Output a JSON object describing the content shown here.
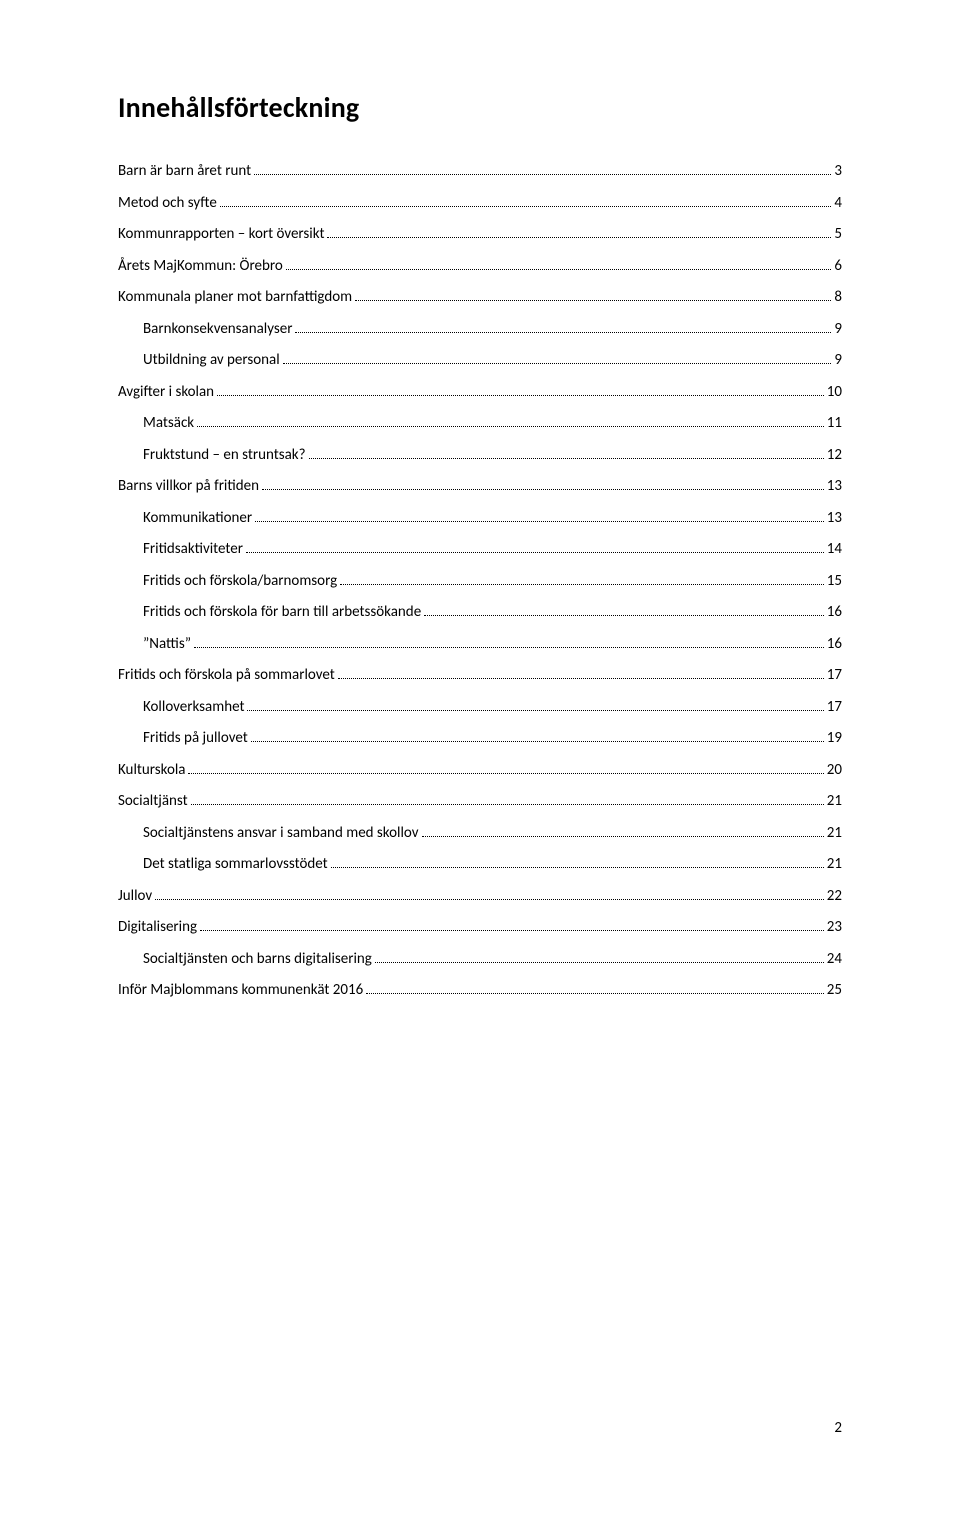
{
  "title": "Innehållsförteckning",
  "footerPage": "2",
  "toc": [
    {
      "level": 0,
      "label": "Barn är barn året runt",
      "page": "3"
    },
    {
      "level": 0,
      "label": "Metod och syfte",
      "page": "4"
    },
    {
      "level": 0,
      "label": "Kommunrapporten – kort översikt",
      "page": "5"
    },
    {
      "level": 0,
      "label": "Årets MajKommun: Örebro",
      "page": "6"
    },
    {
      "level": 0,
      "label": "Kommunala planer mot barnfattigdom",
      "page": "8"
    },
    {
      "level": 1,
      "label": "Barnkonsekvensanalyser",
      "page": "9"
    },
    {
      "level": 1,
      "label": "Utbildning av personal",
      "page": "9"
    },
    {
      "level": 0,
      "label": "Avgifter i skolan",
      "page": "10"
    },
    {
      "level": 1,
      "label": "Matsäck",
      "page": "11"
    },
    {
      "level": 1,
      "label": "Fruktstund – en struntsak?",
      "page": "12"
    },
    {
      "level": 0,
      "label": "Barns villkor på fritiden",
      "page": "13"
    },
    {
      "level": 1,
      "label": "Kommunikationer",
      "page": "13"
    },
    {
      "level": 1,
      "label": "Fritidsaktiviteter",
      "page": "14"
    },
    {
      "level": 1,
      "label": "Fritids och förskola/barnomsorg",
      "page": "15"
    },
    {
      "level": 1,
      "label": "Fritids och förskola för barn till arbetssökande",
      "page": "16"
    },
    {
      "level": 1,
      "label": "”Nattis”",
      "page": "16"
    },
    {
      "level": 0,
      "label": "Fritids och förskola på sommarlovet",
      "page": "17"
    },
    {
      "level": 1,
      "label": "Kolloverksamhet",
      "page": "17"
    },
    {
      "level": 1,
      "label": "Fritids på jullovet",
      "page": "19"
    },
    {
      "level": 0,
      "label": "Kulturskola",
      "page": "20"
    },
    {
      "level": 0,
      "label": "Socialtjänst",
      "page": "21"
    },
    {
      "level": 1,
      "label": "Socialtjänstens ansvar i samband med skollov",
      "page": "21"
    },
    {
      "level": 1,
      "label": "Det statliga sommarlovsstödet",
      "page": "21"
    },
    {
      "level": 0,
      "label": "Jullov",
      "page": "22"
    },
    {
      "level": 0,
      "label": "Digitalisering",
      "page": "23"
    },
    {
      "level": 1,
      "label": "Socialtjänsten och barns digitalisering",
      "page": "24"
    },
    {
      "level": 0,
      "label": "Inför Majblommans kommunenkät 2016",
      "page": "25"
    }
  ]
}
